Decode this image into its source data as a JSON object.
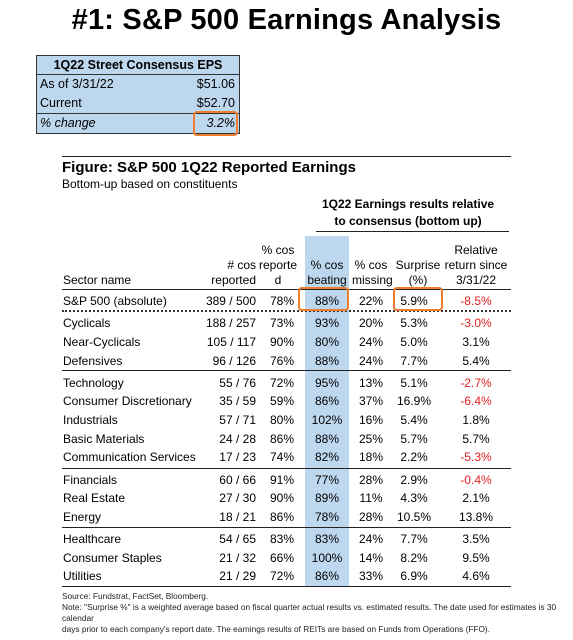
{
  "title": "#1: S&P 500 Earnings Analysis",
  "eps_box": {
    "header": "1Q22 Street Consensus EPS",
    "rows": [
      {
        "label": "As of  3/31/22",
        "value": "$51.06"
      },
      {
        "label": "Current",
        "value": "$52.70"
      },
      {
        "label": "% change",
        "value": "3.2%"
      }
    ]
  },
  "figure": {
    "title": "Figure: S&P 500 1Q22 Reported Earnings",
    "subtitle": "Bottom-up based on constituents",
    "results_header": [
      "1Q22 Earnings results relative",
      "to consensus (bottom up)"
    ],
    "columns": {
      "sector": [
        "Sector name"
      ],
      "reported": [
        "# cos",
        "reported"
      ],
      "pct_reported": [
        "% cos",
        "reporte",
        "d"
      ],
      "pct_beating": [
        "% cos",
        "beating"
      ],
      "pct_missing": [
        "% cos",
        "missing"
      ],
      "surprise": [
        "Surprise",
        "(%)"
      ],
      "relative_return": [
        "Relative",
        "return since",
        "3/31/22"
      ]
    },
    "rows": [
      {
        "sector": "S&P 500 (absolute)",
        "reported": "389 / 500",
        "pct_reported": "78%",
        "pct_beating": "88%",
        "pct_missing": "22%",
        "surprise": "5.9%",
        "relative_return": "-8.5%"
      },
      {
        "sector": "Cyclicals",
        "reported": "188 / 257",
        "pct_reported": "73%",
        "pct_beating": "93%",
        "pct_missing": "20%",
        "surprise": "5.3%",
        "relative_return": "-3.0%"
      },
      {
        "sector": "Near-Cyclicals",
        "reported": "105 / 117",
        "pct_reported": "90%",
        "pct_beating": "80%",
        "pct_missing": "24%",
        "surprise": "5.0%",
        "relative_return": "3.1%"
      },
      {
        "sector": "Defensives",
        "reported": "96 / 126",
        "pct_reported": "76%",
        "pct_beating": "88%",
        "pct_missing": "24%",
        "surprise": "7.7%",
        "relative_return": "5.4%"
      },
      {
        "sector": "Technology",
        "reported": "55 / 76",
        "pct_reported": "72%",
        "pct_beating": "95%",
        "pct_missing": "13%",
        "surprise": "5.1%",
        "relative_return": "-2.7%"
      },
      {
        "sector": "Consumer Discretionary",
        "reported": "35 / 59",
        "pct_reported": "59%",
        "pct_beating": "86%",
        "pct_missing": "37%",
        "surprise": "16.9%",
        "relative_return": "-6.4%"
      },
      {
        "sector": "Industrials",
        "reported": "57 / 71",
        "pct_reported": "80%",
        "pct_beating": "102%",
        "pct_missing": "16%",
        "surprise": "5.4%",
        "relative_return": "1.8%"
      },
      {
        "sector": "Basic Materials",
        "reported": "24 / 28",
        "pct_reported": "86%",
        "pct_beating": "88%",
        "pct_missing": "25%",
        "surprise": "5.7%",
        "relative_return": "5.7%"
      },
      {
        "sector": "Communication Services",
        "reported": "17 / 23",
        "pct_reported": "74%",
        "pct_beating": "82%",
        "pct_missing": "18%",
        "surprise": "2.2%",
        "relative_return": "-5.3%"
      },
      {
        "sector": "Financials",
        "reported": "60 / 66",
        "pct_reported": "91%",
        "pct_beating": "77%",
        "pct_missing": "28%",
        "surprise": "2.9%",
        "relative_return": "-0.4%"
      },
      {
        "sector": "Real Estate",
        "reported": "27 / 30",
        "pct_reported": "90%",
        "pct_beating": "89%",
        "pct_missing": "11%",
        "surprise": "4.3%",
        "relative_return": "2.1%"
      },
      {
        "sector": "Energy",
        "reported": "18 / 21",
        "pct_reported": "86%",
        "pct_beating": "78%",
        "pct_missing": "28%",
        "surprise": "10.5%",
        "relative_return": "13.8%"
      },
      {
        "sector": "Healthcare",
        "reported": "54 / 65",
        "pct_reported": "83%",
        "pct_beating": "83%",
        "pct_missing": "24%",
        "surprise": "7.7%",
        "relative_return": "3.5%"
      },
      {
        "sector": "Consumer Staples",
        "reported": "21 / 32",
        "pct_reported": "66%",
        "pct_beating": "100%",
        "pct_missing": "14%",
        "surprise": "8.2%",
        "relative_return": "9.5%"
      },
      {
        "sector": "Utilities",
        "reported": "21 / 29",
        "pct_reported": "72%",
        "pct_beating": "86%",
        "pct_missing": "33%",
        "surprise": "6.9%",
        "relative_return": "4.6%"
      }
    ],
    "notes": [
      "Source: Fundstrat, FactSet, Bloomberg.",
      "Note: \"Surprise %\" is a weighted average based on fiscal quarter actual results vs. estimated results.  The date used for estimates is 30 calendar",
      "days prior to each company's report date. The earnings results of REITs are based on Funds from Operations (FFO)."
    ]
  },
  "colors": {
    "highlight_fill": "#bdd7ee",
    "callout_border": "#ef7d2f",
    "negative": "#e02020"
  }
}
